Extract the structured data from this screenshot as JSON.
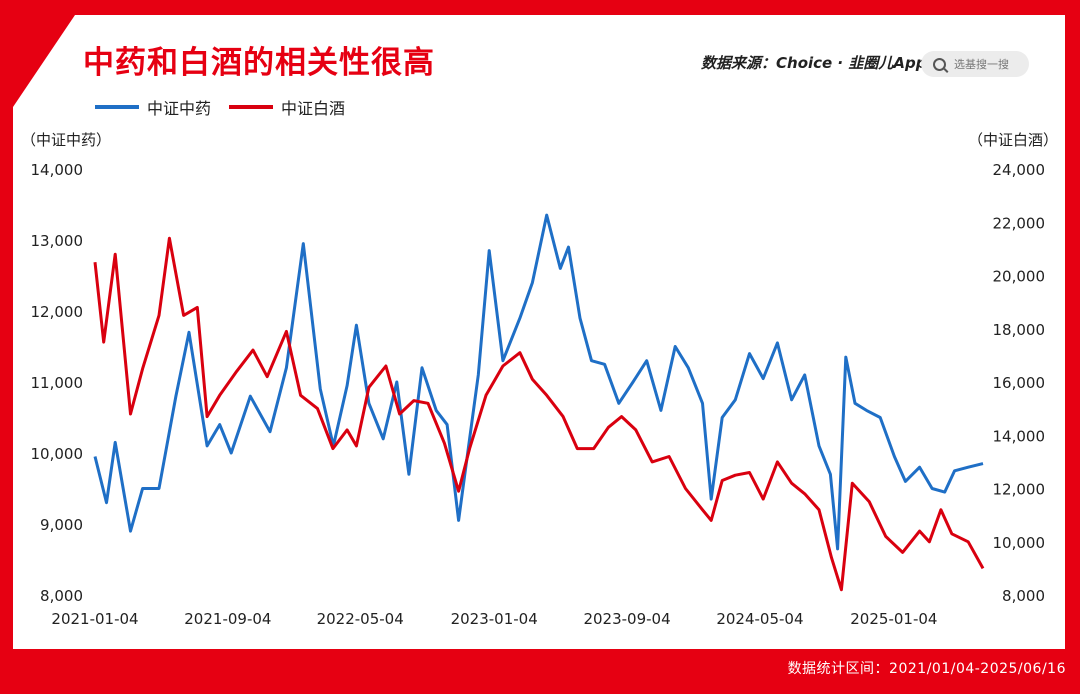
{
  "title": "中药和白酒的相关性很高",
  "source": "数据来源：Choice · 韭圈儿App",
  "search_placeholder": "选基搜一搜",
  "footer": "数据统计区间：2021/01/04-2025/06/16",
  "colors": {
    "brand": "#e60012",
    "series_blue": "#1f6fc6",
    "series_red": "#d9000f"
  },
  "chart_data": {
    "type": "line",
    "xlabel": "",
    "x_ticks": [
      "2021-01-04",
      "2021-09-04",
      "2022-05-04",
      "2023-01-04",
      "2023-09-04",
      "2024-05-04",
      "2025-01-04"
    ],
    "y_left": {
      "label": "（中证中药）",
      "ylim": [
        8000,
        14000
      ],
      "ticks": [
        "8,000",
        "9,000",
        "10,000",
        "11,000",
        "12,000",
        "13,000",
        "14,000"
      ]
    },
    "y_right": {
      "label": "（中证白酒）",
      "ylim": [
        8000,
        24000
      ],
      "ticks": [
        "8,000",
        "10,000",
        "12,000",
        "14,000",
        "16,000",
        "18,000",
        "20,000",
        "22,000",
        "24,000"
      ]
    },
    "grid": false,
    "legend_position": "top-left",
    "series": [
      {
        "name": "中证中药",
        "axis": "left",
        "color": "#1f6fc6",
        "x": [
          "2021-01-04",
          "2021-01-25",
          "2021-02-10",
          "2021-03-10",
          "2021-04-01",
          "2021-05-01",
          "2021-06-01",
          "2021-06-25",
          "2021-07-28",
          "2021-08-20",
          "2021-09-10",
          "2021-10-15",
          "2021-11-20",
          "2021-12-20",
          "2022-01-20",
          "2022-02-20",
          "2022-03-16",
          "2022-04-10",
          "2022-04-27",
          "2022-05-20",
          "2022-06-15",
          "2022-07-10",
          "2022-08-01",
          "2022-08-25",
          "2022-09-20",
          "2022-10-10",
          "2022-10-31",
          "2022-11-20",
          "2022-12-06",
          "2022-12-26",
          "2023-01-20",
          "2023-02-20",
          "2023-03-15",
          "2023-04-10",
          "2023-05-05",
          "2023-05-20",
          "2023-06-10",
          "2023-07-01",
          "2023-07-25",
          "2023-08-20",
          "2023-09-15",
          "2023-10-10",
          "2023-11-05",
          "2023-12-01",
          "2023-12-25",
          "2024-01-20",
          "2024-02-05",
          "2024-02-25",
          "2024-03-20",
          "2024-04-15",
          "2024-05-10",
          "2024-06-05",
          "2024-07-01",
          "2024-07-25",
          "2024-08-20",
          "2024-09-10",
          "2024-09-23",
          "2024-10-08",
          "2024-10-25",
          "2024-11-15",
          "2024-12-10",
          "2025-01-05",
          "2025-01-25",
          "2025-02-20",
          "2025-03-15",
          "2025-04-07",
          "2025-04-25",
          "2025-05-20",
          "2025-06-16"
        ],
        "values": [
          9950,
          9300,
          10150,
          8900,
          9500,
          9500,
          10800,
          11700,
          10100,
          10400,
          10000,
          10800,
          10300,
          11200,
          12950,
          10900,
          10100,
          10950,
          11800,
          10700,
          10200,
          11000,
          9700,
          11200,
          10600,
          10400,
          9050,
          10200,
          11100,
          12850,
          11300,
          11900,
          12400,
          13350,
          12600,
          12900,
          11900,
          11300,
          11250,
          10700,
          11000,
          11300,
          10600,
          11500,
          11200,
          10700,
          9350,
          10500,
          10750,
          11400,
          11050,
          11550,
          10750,
          11100,
          10100,
          9700,
          8650,
          11350,
          10700,
          10600,
          10500,
          9950,
          9600,
          9800,
          9500,
          9450,
          9750,
          9800,
          9850
        ]
      },
      {
        "name": "中证白酒",
        "axis": "right",
        "color": "#d9000f",
        "x": [
          "2021-01-04",
          "2021-01-20",
          "2021-02-10",
          "2021-03-10",
          "2021-04-01",
          "2021-05-01",
          "2021-05-20",
          "2021-06-15",
          "2021-07-10",
          "2021-07-28",
          "2021-08-20",
          "2021-09-20",
          "2021-10-20",
          "2021-11-15",
          "2021-12-20",
          "2022-01-15",
          "2022-02-15",
          "2022-03-15",
          "2022-04-10",
          "2022-04-27",
          "2022-05-20",
          "2022-06-20",
          "2022-07-15",
          "2022-08-10",
          "2022-09-05",
          "2022-10-05",
          "2022-10-31",
          "2022-11-20",
          "2022-12-20",
          "2023-01-20",
          "2023-02-20",
          "2023-03-15",
          "2023-04-10",
          "2023-05-10",
          "2023-06-05",
          "2023-07-05",
          "2023-08-01",
          "2023-08-25",
          "2023-09-20",
          "2023-10-20",
          "2023-11-20",
          "2023-12-20",
          "2024-01-20",
          "2024-02-05",
          "2024-02-25",
          "2024-03-20",
          "2024-04-15",
          "2024-05-10",
          "2024-06-05",
          "2024-07-01",
          "2024-07-25",
          "2024-08-20",
          "2024-09-12",
          "2024-09-30",
          "2024-10-20",
          "2024-11-20",
          "2024-12-20",
          "2025-01-20",
          "2025-02-20",
          "2025-03-10",
          "2025-03-31",
          "2025-04-20",
          "2025-05-20",
          "2025-06-16"
        ],
        "values": [
          20500,
          17500,
          20800,
          14800,
          16500,
          18500,
          21400,
          18500,
          18800,
          14700,
          15500,
          16400,
          17200,
          16200,
          17900,
          15500,
          15000,
          13500,
          14200,
          13600,
          15800,
          16600,
          14800,
          15300,
          15200,
          13700,
          11900,
          13500,
          15500,
          16600,
          17100,
          16100,
          15500,
          14700,
          13500,
          13500,
          14300,
          14700,
          14200,
          13000,
          13200,
          12000,
          11200,
          10800,
          12300,
          12500,
          12600,
          11600,
          13000,
          12200,
          11800,
          11200,
          9400,
          8200,
          12200,
          11500,
          10200,
          9600,
          10400,
          10000,
          11200,
          10300,
          10000,
          9000
        ]
      }
    ]
  }
}
